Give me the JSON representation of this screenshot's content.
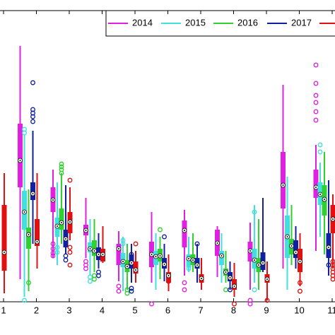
{
  "chart_data": {
    "type": "box",
    "categories": [
      "1",
      "2",
      "3",
      "4",
      "5",
      "6",
      "7",
      "8",
      "9",
      "10",
      "11"
    ],
    "ylim": [
      -5,
      410
    ],
    "legend": "upper right",
    "series": [
      {
        "name": "2014",
        "color": "#e020e0",
        "values": [
          null,
          {
            "low": 30,
            "q1": 160,
            "median": 198,
            "q3": 250,
            "high": 360,
            "outliers": []
          },
          {
            "low": 60,
            "q1": 125,
            "median": 142,
            "q3": 160,
            "high": 185,
            "outliers": [
              80,
              73,
              67,
              63
            ]
          },
          {
            "low": 60,
            "q1": 92,
            "median": 99,
            "q3": 107,
            "high": 145,
            "outliers": [
              55,
              50,
              45
            ]
          },
          {
            "low": 27,
            "q1": 50,
            "median": 73,
            "q3": 80,
            "high": 98,
            "outliers": [
              20,
              13
            ]
          },
          {
            "low": 25,
            "q1": 47,
            "median": 65,
            "q3": 83,
            "high": 125,
            "outliers": [
              -5
            ]
          },
          {
            "low": 35,
            "q1": 75,
            "median": 99,
            "q3": 113,
            "high": 128,
            "outliers": [
              25,
              15
            ]
          },
          {
            "low": 33,
            "q1": 63,
            "median": 81,
            "q3": 100,
            "high": 105,
            "outliers": []
          },
          {
            "low": 15,
            "q1": 55,
            "median": 70,
            "q3": 83,
            "high": 110,
            "outliers": [
              0,
              -5
            ]
          },
          {
            "low": 45,
            "q1": 130,
            "median": 163,
            "q3": 210,
            "high": 305,
            "outliers": []
          },
          {
            "low": 70,
            "q1": 145,
            "median": 160,
            "q3": 185,
            "high": 220,
            "outliers": [
              307,
              290,
              280,
              267,
              255,
              333
            ]
          }
        ]
      },
      {
        "name": "2015",
        "color": "#40e0e0",
        "values": [
          null,
          {
            "low": 5,
            "q1": 100,
            "median": 125,
            "q3": 155,
            "high": 235,
            "outliers": [
              0,
              237,
              242
            ]
          },
          {
            "low": 50,
            "q1": 90,
            "median": 105,
            "q3": 117,
            "high": 167,
            "outliers": [
              75,
              68
            ]
          },
          {
            "low": 35,
            "q1": 68,
            "median": 73,
            "q3": 82,
            "high": 115,
            "outliers": [
              33,
              27
            ]
          },
          {
            "low": 13,
            "q1": 47,
            "median": 55,
            "q3": 67,
            "high": 90,
            "outliers": [
              85,
              80
            ]
          },
          {
            "low": 15,
            "q1": 50,
            "median": 62,
            "q3": 70,
            "high": 95,
            "outliers": []
          },
          {
            "low": 40,
            "q1": 47,
            "median": 59,
            "q3": 65,
            "high": 90,
            "outliers": [
              45
            ]
          },
          {
            "low": 25,
            "q1": 50,
            "median": 63,
            "q3": 70,
            "high": 95,
            "outliers": []
          },
          {
            "low": 25,
            "q1": 45,
            "median": 57,
            "q3": 73,
            "high": 135,
            "outliers": [
              125,
              15
            ]
          },
          {
            "low": 15,
            "q1": 60,
            "median": 90,
            "q3": 120,
            "high": 175,
            "outliers": []
          },
          {
            "low": 90,
            "q1": 135,
            "median": 150,
            "q3": 167,
            "high": 195,
            "outliers": [
              220,
              210
            ]
          }
        ]
      },
      {
        "name": "2016",
        "color": "#30d030",
        "values": [
          null,
          {
            "low": 13,
            "q1": 73,
            "median": 93,
            "q3": 103,
            "high": 157,
            "outliers": [
              25
            ]
          },
          {
            "low": 80,
            "q1": 100,
            "median": 110,
            "q3": 130,
            "high": 180,
            "outliers": [
              193,
              189,
              185,
              180
            ]
          },
          {
            "low": 40,
            "q1": 63,
            "median": 70,
            "q3": 85,
            "high": 115,
            "outliers": [
              35,
              30
            ]
          },
          {
            "low": 15,
            "q1": 40,
            "median": 48,
            "q3": 57,
            "high": 80,
            "outliers": [
              15,
              10
            ]
          },
          {
            "low": 30,
            "q1": 55,
            "median": 63,
            "q3": 73,
            "high": 90,
            "outliers": [
              100
            ]
          },
          {
            "low": 40,
            "q1": 50,
            "median": 57,
            "q3": 65,
            "high": 95,
            "outliers": []
          },
          {
            "low": 25,
            "q1": 35,
            "median": 40,
            "q3": 45,
            "high": 70,
            "outliers": [
              15
            ]
          },
          {
            "low": 15,
            "q1": 40,
            "median": 50,
            "q3": 60,
            "high": 115,
            "outliers": []
          },
          {
            "low": 50,
            "q1": 65,
            "median": 77,
            "q3": 87,
            "high": 135,
            "outliers": []
          },
          {
            "low": 65,
            "q1": 120,
            "median": 143,
            "q3": 163,
            "high": 210,
            "outliers": []
          }
        ]
      },
      {
        "name": "2017",
        "color": "#1020a0",
        "values": [
          null,
          {
            "low": 80,
            "q1": 142,
            "median": 151,
            "q3": 167,
            "high": 240,
            "outliers": [
              308,
              270,
              265,
              260,
              253
            ]
          },
          {
            "low": 65,
            "q1": 75,
            "median": 87,
            "q3": 100,
            "high": 163,
            "outliers": [
              63,
              57
            ]
          },
          {
            "low": 45,
            "q1": 57,
            "median": 65,
            "q3": 75,
            "high": 95,
            "outliers": [
              40,
              35
            ]
          },
          {
            "low": 25,
            "q1": 45,
            "median": 53,
            "q3": 65,
            "high": 80,
            "outliers": [
              65,
              17,
              13
            ]
          },
          {
            "low": 27,
            "q1": 45,
            "median": 51,
            "q3": 60,
            "high": 80,
            "outliers": [
              90
            ]
          },
          {
            "low": 25,
            "q1": 45,
            "median": 50,
            "q3": 60,
            "high": 80,
            "outliers": [
              80
            ]
          },
          {
            "low": 15,
            "q1": 27,
            "median": 32,
            "q3": 40,
            "high": 55,
            "outliers": [
              15
            ]
          },
          {
            "low": 40,
            "q1": 43,
            "median": 53,
            "q3": 68,
            "high": 145,
            "outliers": []
          },
          {
            "low": 45,
            "q1": 60,
            "median": 68,
            "q3": 85,
            "high": 105,
            "outliers": []
          },
          {
            "low": 35,
            "q1": 60,
            "median": 75,
            "q3": 95,
            "high": 170,
            "outliers": [
              50
            ]
          }
        ]
      },
      {
        "name": null,
        "color": "#e01010",
        "values": [
          {
            "low": 10,
            "q1": 42,
            "median": 68,
            "q3": 135,
            "high": 180,
            "outliers": []
          },
          {
            "low": 45,
            "q1": 77,
            "median": 83,
            "q3": 115,
            "high": 180,
            "outliers": []
          },
          {
            "low": 85,
            "q1": 95,
            "median": 111,
            "q3": 125,
            "high": 160,
            "outliers": [
              170,
              75,
              68,
              50
            ]
          },
          {
            "low": 53,
            "q1": 55,
            "median": 65,
            "q3": 73,
            "high": 105,
            "outliers": []
          },
          {
            "low": 25,
            "q1": 38,
            "median": 43,
            "q3": 55,
            "high": 70,
            "outliers": [
              80
            ]
          },
          {
            "low": 13,
            "q1": 25,
            "median": 35,
            "q3": 40,
            "high": 65,
            "outliers": [
              27
            ]
          },
          {
            "low": 15,
            "q1": 25,
            "median": 31,
            "q3": 37,
            "high": 60,
            "outliers": []
          },
          {
            "low": 5,
            "q1": 15,
            "median": 20,
            "q3": 30,
            "high": 53,
            "outliers": [
              -5
            ]
          },
          {
            "low": 0,
            "q1": 25,
            "median": 30,
            "q3": 37,
            "high": 55,
            "outliers": [
              0
            ]
          },
          {
            "low": 20,
            "q1": 40,
            "median": 55,
            "q3": 73,
            "high": 95,
            "outliers": [
              25,
              13
            ]
          },
          {
            "low": 45,
            "q1": 95,
            "median": 115,
            "q3": 135,
            "high": 150,
            "outliers": [
              55,
              50,
              45,
              40,
              35,
              30
            ]
          }
        ]
      }
    ]
  }
}
